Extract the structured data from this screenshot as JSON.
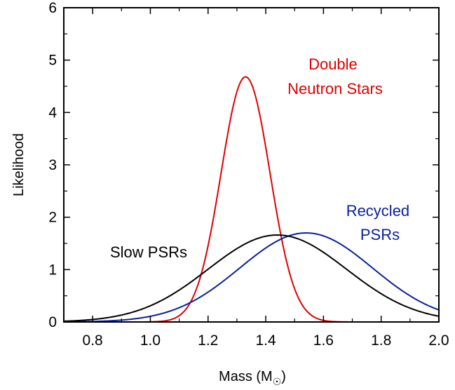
{
  "chart_data": {
    "type": "line",
    "xlabel": "Mass (M",
    "xlabel_subscript": "☉",
    "xlabel_suffix": ")",
    "ylabel": "Likelihood",
    "xlim": [
      0.7,
      2.0
    ],
    "ylim": [
      0,
      6
    ],
    "xticks": [
      "0.8",
      "1.0",
      "1.2",
      "1.4",
      "1.6",
      "1.8",
      "2.0"
    ],
    "xtick_values": [
      0.8,
      1.0,
      1.2,
      1.4,
      1.6,
      1.8,
      2.0
    ],
    "yticks": [
      "0",
      "1",
      "2",
      "3",
      "4",
      "5",
      "6"
    ],
    "ytick_values": [
      0,
      1,
      2,
      3,
      4,
      5,
      6
    ],
    "grid": false,
    "series": [
      {
        "name": "Double Neutron Stars",
        "label_lines": [
          "Double",
          "Neutron Stars"
        ],
        "color": "#e00000",
        "model": "gaussian",
        "peak_x": 1.33,
        "peak_y": 4.68,
        "sigma": 0.085,
        "x": [
          0.7,
          1.0,
          1.1,
          1.15,
          1.2,
          1.25,
          1.3,
          1.33,
          1.36,
          1.4,
          1.45,
          1.5,
          1.55,
          1.6,
          2.0
        ],
        "y": [
          0.0,
          0.0,
          0.03,
          0.25,
          1.06,
          2.83,
          4.39,
          4.68,
          4.5,
          3.33,
          1.77,
          0.63,
          0.16,
          0.03,
          0.0
        ]
      },
      {
        "name": "Recycled PSRs",
        "label_lines": [
          "Recycled",
          "PSRs"
        ],
        "color": "#0a1f9c",
        "model": "gaussian",
        "peak_x": 1.54,
        "peak_y": 1.7,
        "sigma": 0.23,
        "x": [
          0.7,
          0.8,
          0.9,
          1.0,
          1.1,
          1.2,
          1.3,
          1.4,
          1.5,
          1.54,
          1.6,
          1.7,
          1.8,
          1.9,
          2.0
        ],
        "y": [
          0.02,
          0.03,
          0.09,
          0.18,
          0.31,
          0.57,
          0.98,
          1.39,
          1.67,
          1.7,
          1.63,
          1.36,
          0.91,
          0.55,
          0.23
        ]
      },
      {
        "name": "Slow PSRs",
        "label_lines": [
          "Slow PSRs"
        ],
        "color": "#000000",
        "model": "gaussian",
        "peak_x": 1.44,
        "peak_y": 1.66,
        "sigma": 0.24,
        "x": [
          0.7,
          0.8,
          0.9,
          1.0,
          1.1,
          1.2,
          1.3,
          1.4,
          1.44,
          1.5,
          1.6,
          1.7,
          1.8,
          1.9,
          2.0
        ],
        "y": [
          0.02,
          0.06,
          0.13,
          0.3,
          0.58,
          0.96,
          1.38,
          1.64,
          1.66,
          1.61,
          1.33,
          0.92,
          0.53,
          0.26,
          0.11
        ]
      }
    ]
  }
}
